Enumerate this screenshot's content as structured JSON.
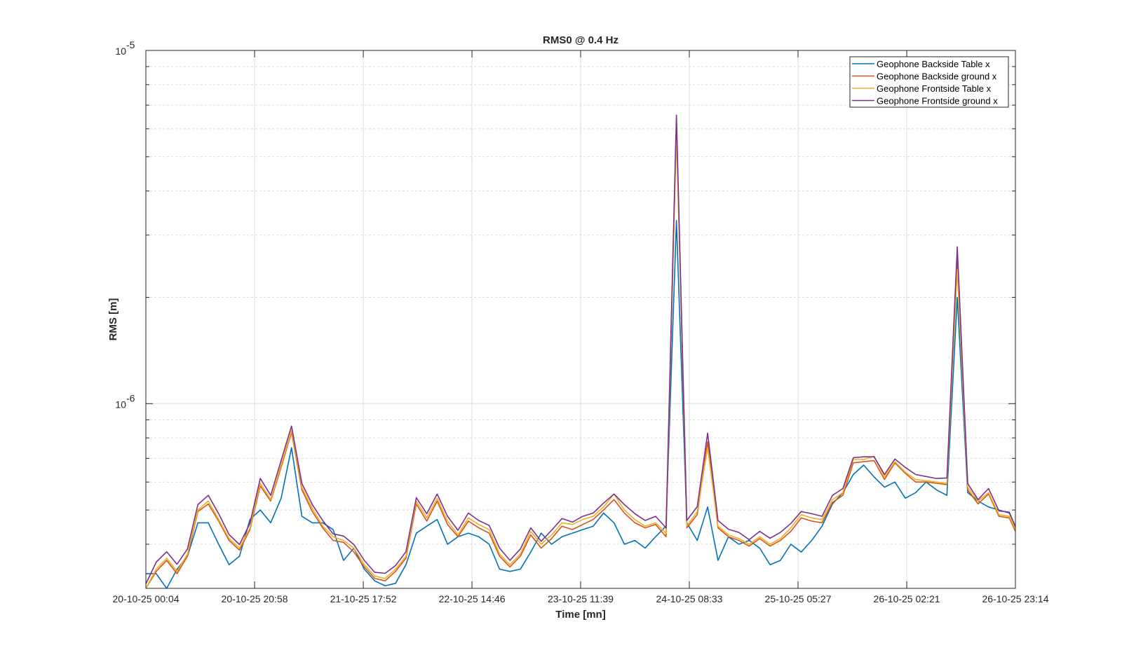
{
  "chart_data": {
    "type": "line",
    "title": "RMS0 @ 0.4 Hz",
    "xlabel": "Time [mn]",
    "ylabel": "RMS [m]",
    "yscale": "log",
    "ylim": [
      3e-07,
      1e-05
    ],
    "y_unit_multiplier": 1e-07,
    "ytick_labels": [
      {
        "base": "10",
        "exp": "-6",
        "value": 1e-06
      },
      {
        "base": "10",
        "exp": "-5",
        "value": 1e-05
      }
    ],
    "x_unit": "hours since 20-10-25 00:04",
    "xlim": [
      0,
      167.17
    ],
    "xtick_values": [
      0,
      20.9,
      41.8,
      62.7,
      83.58,
      104.48,
      125.38,
      146.28,
      167.17
    ],
    "xtick_labels": [
      "20-10-25 00:04",
      "20-10-25 20:58",
      "21-10-25 17:52",
      "22-10-25 14:46",
      "23-10-25 11:39",
      "24-10-25 08:33",
      "25-10-25 05:27",
      "26-10-25 02:21",
      "26-10-25 23:14"
    ],
    "grid": true,
    "legend_position": "top-right",
    "x": [
      0,
      2,
      4,
      6,
      8,
      10,
      12,
      14,
      16,
      18,
      20,
      22,
      24,
      26,
      28,
      30,
      32,
      34,
      36,
      38,
      40,
      42,
      44,
      46,
      48,
      50,
      52,
      54,
      56,
      58,
      60,
      62,
      64,
      66,
      68,
      70,
      72,
      74,
      76,
      78,
      80,
      82,
      84,
      86,
      88,
      90,
      92,
      94,
      96,
      98,
      100,
      102,
      104,
      106,
      108,
      110,
      112,
      114,
      116,
      118,
      120,
      122,
      124,
      126,
      128,
      130,
      132,
      134,
      136,
      138,
      140,
      142,
      144,
      146,
      148,
      150,
      152,
      154,
      156,
      158,
      160,
      162,
      164,
      166,
      167.17
    ],
    "series": [
      {
        "name": "Geophone Backside Table x",
        "color": "#0072BD",
        "values": [
          3.3,
          3.3,
          3.0,
          3.4,
          3.7,
          4.6,
          4.6,
          4.0,
          3.5,
          3.7,
          4.7,
          5.0,
          4.6,
          5.4,
          7.5,
          4.8,
          4.6,
          4.6,
          4.4,
          3.6,
          3.9,
          3.4,
          3.15,
          3.05,
          3.1,
          3.5,
          4.3,
          4.5,
          4.7,
          4.0,
          4.2,
          4.3,
          4.2,
          4.0,
          3.4,
          3.35,
          3.4,
          3.8,
          4.3,
          4.0,
          4.2,
          4.3,
          4.4,
          4.5,
          4.9,
          4.6,
          4.0,
          4.1,
          3.9,
          4.2,
          4.5,
          33,
          4.6,
          4.1,
          5.1,
          3.6,
          4.2,
          4.0,
          4.1,
          3.9,
          3.5,
          3.6,
          4.0,
          3.8,
          4.1,
          4.5,
          5.2,
          5.6,
          6.3,
          6.7,
          6.2,
          5.8,
          6.0,
          5.4,
          5.6,
          6.0,
          5.7,
          5.5,
          20,
          5.6,
          5.3,
          5.1,
          5.0,
          4.9,
          4.5
        ]
      },
      {
        "name": "Geophone Backside ground x",
        "color": "#D95319",
        "values": [
          3.0,
          3.35,
          3.6,
          3.3,
          3.7,
          4.95,
          5.2,
          4.65,
          4.1,
          3.85,
          4.4,
          5.85,
          5.3,
          6.6,
          8.3,
          5.7,
          4.95,
          4.45,
          4.1,
          4.05,
          3.8,
          3.45,
          3.2,
          3.15,
          3.35,
          3.65,
          5.2,
          4.65,
          5.3,
          4.55,
          4.2,
          4.65,
          4.45,
          4.3,
          3.7,
          3.45,
          3.7,
          4.25,
          3.9,
          4.15,
          4.5,
          4.4,
          4.55,
          4.7,
          5.0,
          5.35,
          4.9,
          4.6,
          4.45,
          4.55,
          4.2,
          62,
          4.45,
          4.85,
          7.8,
          4.45,
          4.2,
          4.1,
          3.95,
          4.15,
          3.95,
          4.1,
          4.35,
          4.75,
          4.65,
          4.6,
          5.25,
          5.5,
          6.8,
          6.85,
          6.9,
          6.1,
          6.8,
          6.35,
          6.0,
          6.0,
          5.95,
          5.9,
          26,
          5.7,
          5.2,
          5.55,
          4.8,
          4.75,
          4.35
        ]
      },
      {
        "name": "Geophone Frontside Table x",
        "color": "#EDB120",
        "values": [
          2.95,
          3.4,
          3.65,
          3.35,
          3.75,
          5.0,
          5.3,
          4.7,
          4.15,
          3.9,
          4.45,
          5.95,
          5.35,
          6.7,
          8.4,
          5.8,
          5.05,
          4.5,
          4.2,
          4.1,
          3.9,
          3.5,
          3.25,
          3.2,
          3.4,
          3.7,
          5.3,
          4.75,
          5.4,
          4.65,
          4.25,
          4.75,
          4.55,
          4.4,
          3.75,
          3.5,
          3.75,
          4.35,
          4.0,
          4.25,
          4.6,
          4.55,
          4.7,
          4.8,
          5.1,
          5.55,
          5.0,
          4.7,
          4.5,
          4.6,
          4.3,
          58,
          4.5,
          4.95,
          7.5,
          4.5,
          4.25,
          4.15,
          4.0,
          4.2,
          4.0,
          4.15,
          4.45,
          4.85,
          4.75,
          4.7,
          5.35,
          5.6,
          6.95,
          6.95,
          7.1,
          6.2,
          6.85,
          6.4,
          6.1,
          6.05,
          6.0,
          5.95,
          24,
          5.8,
          5.3,
          5.6,
          4.85,
          4.8,
          4.4
        ]
      },
      {
        "name": "Geophone Frontside ground x",
        "color": "#7E2F8E",
        "values": [
          3.09,
          3.56,
          3.81,
          3.51,
          3.88,
          5.18,
          5.5,
          4.88,
          4.26,
          3.99,
          4.58,
          6.14,
          5.5,
          6.9,
          8.64,
          5.94,
          5.18,
          4.67,
          4.28,
          4.22,
          3.99,
          3.6,
          3.33,
          3.31,
          3.48,
          3.81,
          5.42,
          4.88,
          5.55,
          4.8,
          4.38,
          4.9,
          4.67,
          4.52,
          3.9,
          3.6,
          3.88,
          4.45,
          4.08,
          4.38,
          4.73,
          4.62,
          4.8,
          4.9,
          5.23,
          5.55,
          5.18,
          4.88,
          4.67,
          4.8,
          4.45,
          65.6,
          4.67,
          5.11,
          8.25,
          4.67,
          4.41,
          4.32,
          4.12,
          4.35,
          4.16,
          4.32,
          4.58,
          4.95,
          4.88,
          4.8,
          5.5,
          5.75,
          7.03,
          7.07,
          7.07,
          6.3,
          6.97,
          6.6,
          6.3,
          6.22,
          6.14,
          6.16,
          27.8,
          5.94,
          5.35,
          5.75,
          4.97,
          4.93,
          4.48
        ]
      }
    ]
  }
}
